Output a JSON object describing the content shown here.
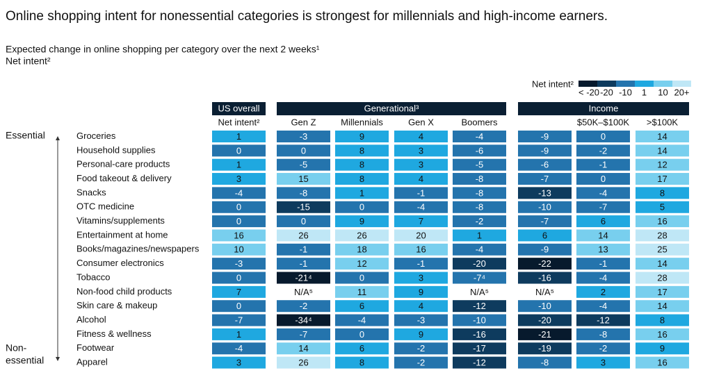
{
  "title": "Online shopping intent for nonessential categories is strongest for millennials and high-income earners.",
  "subtitle": "Expected change in online shopping per category over the next 2 weeks¹",
  "unit": "Net intent²",
  "legend": {
    "title": "Net intent²",
    "items": [
      {
        "label": "< -20",
        "color": "#071a2d"
      },
      {
        "value": -20,
        "label": "-20",
        "color": "#0e3b5e"
      },
      {
        "value": -10,
        "label": "-10",
        "color": "#2474ad"
      },
      {
        "value": 1,
        "label": "1",
        "color": "#1fa8e0"
      },
      {
        "value": 10,
        "label": "10",
        "color": "#78cfee"
      },
      {
        "value": 20,
        "label": "20+",
        "color": "#bfe7f6"
      }
    ]
  },
  "groups": [
    "US overall",
    "Generational³",
    "Income"
  ],
  "columns": [
    "Net intent²",
    "Gen Z",
    "Millennials",
    "Gen X",
    "Boomers",
    null,
    "$50K–$100K",
    ">$100K"
  ],
  "side_labels": {
    "top": "Essential",
    "bottom": [
      "Non-",
      "essential"
    ]
  },
  "rows": [
    {
      "label": "Groceries",
      "values": [
        1,
        -3,
        9,
        4,
        -4,
        -9,
        0,
        14
      ]
    },
    {
      "label": "Household supplies",
      "values": [
        0,
        0,
        8,
        3,
        -6,
        -9,
        -2,
        14
      ]
    },
    {
      "label": "Personal-care products",
      "values": [
        1,
        -5,
        8,
        3,
        -5,
        -6,
        -1,
        12
      ]
    },
    {
      "label": "Food takeout & delivery",
      "values": [
        3,
        15,
        8,
        4,
        -8,
        -7,
        0,
        17
      ]
    },
    {
      "label": "Snacks",
      "values": [
        -4,
        -8,
        1,
        -1,
        -8,
        -13,
        -4,
        8
      ]
    },
    {
      "label": "OTC medicine",
      "values": [
        0,
        -15,
        0,
        -4,
        -8,
        -10,
        -7,
        5
      ]
    },
    {
      "label": "Vitamins/supplements",
      "values": [
        0,
        0,
        9,
        7,
        -2,
        -7,
        6,
        16
      ]
    },
    {
      "label": "Entertainment at home",
      "values": [
        16,
        26,
        26,
        20,
        1,
        6,
        14,
        28
      ]
    },
    {
      "label": "Books/magazines/newspapers",
      "values": [
        10,
        -1,
        18,
        16,
        -4,
        -9,
        13,
        25
      ]
    },
    {
      "label": "Consumer electronics",
      "values": [
        -3,
        -1,
        12,
        -1,
        -20,
        -22,
        -1,
        14
      ]
    },
    {
      "label": "Tobacco",
      "values": [
        0,
        {
          "value": -21,
          "label": "-21⁴"
        },
        0,
        3,
        {
          "value": -7,
          "label": "-7⁴"
        },
        -16,
        -4,
        28
      ]
    },
    {
      "label": "Non-food child products",
      "values": [
        7,
        "N/A⁵",
        11,
        9,
        "N/A⁵",
        "N/A⁵",
        2,
        17
      ]
    },
    {
      "label": "Skin care & makeup",
      "values": [
        0,
        -2,
        6,
        4,
        -12,
        -10,
        -4,
        14
      ]
    },
    {
      "label": "Alcohol",
      "values": [
        -7,
        {
          "value": -34,
          "label": "-34⁴"
        },
        -4,
        -3,
        -10,
        -20,
        -12,
        8
      ]
    },
    {
      "label": "Fitness & wellness",
      "values": [
        1,
        -7,
        0,
        9,
        -16,
        -21,
        -8,
        16
      ]
    },
    {
      "label": "Footwear",
      "values": [
        -4,
        14,
        6,
        -2,
        -17,
        -19,
        -2,
        9
      ]
    },
    {
      "label": "Apparel",
      "values": [
        3,
        26,
        8,
        -2,
        -12,
        -8,
        3,
        16
      ]
    }
  ]
}
